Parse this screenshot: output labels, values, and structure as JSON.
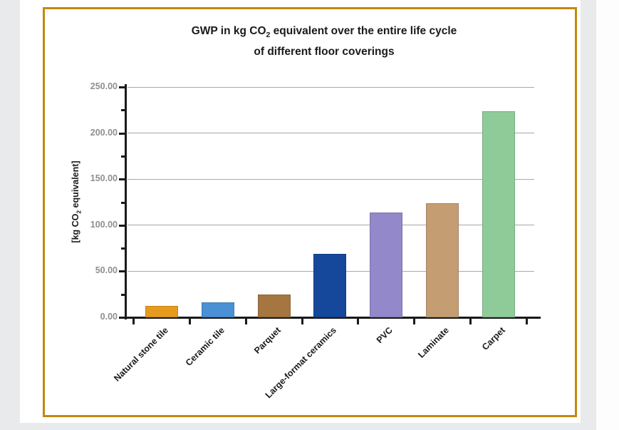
{
  "page": {
    "background_color": "#e9eaec",
    "frame_border_color": "#c5870f"
  },
  "chart_data": {
    "type": "bar",
    "title": "GWP in kg CO2 equivalent over the entire life cycle of different floor coverings",
    "title_line1_prefix": "GWP in kg CO",
    "title_sub": "2",
    "title_line1_suffix": " equivalent over the entire life cycle",
    "title_line2": "of different floor coverings",
    "ylabel_prefix": "[kg CO",
    "ylabel_sub": "2",
    "ylabel_suffix": " equivalent]",
    "categories": [
      "Natural stone tile",
      "Ceramic tile",
      "Parquet",
      "Large-format ceramics",
      "PVC",
      "Laminate",
      "Carpet"
    ],
    "values": [
      12,
      16,
      25,
      69,
      114,
      124,
      224
    ],
    "bar_colors": [
      "#e69a1e",
      "#4a90d4",
      "#a5763f",
      "#15479a",
      "#9288ca",
      "#c59d72",
      "#8fcb98"
    ],
    "yticks": [
      {
        "label": "0.00",
        "value": 0
      },
      {
        "label": "50.00",
        "value": 50
      },
      {
        "label": "100.00",
        "value": 100
      },
      {
        "label": "150.00",
        "value": 150
      },
      {
        "label": "200.00",
        "value": 200
      },
      {
        "label": "250.00",
        "value": 250
      }
    ],
    "minor_tick_values": [
      25,
      75,
      125,
      175,
      225
    ],
    "ylim": [
      0,
      250
    ],
    "grid": "horizontal-major",
    "legend": "none",
    "axis_color": "#1a1a1a",
    "grid_color": "#a8a8a8",
    "tick_label_color": "#8f8f8f"
  }
}
